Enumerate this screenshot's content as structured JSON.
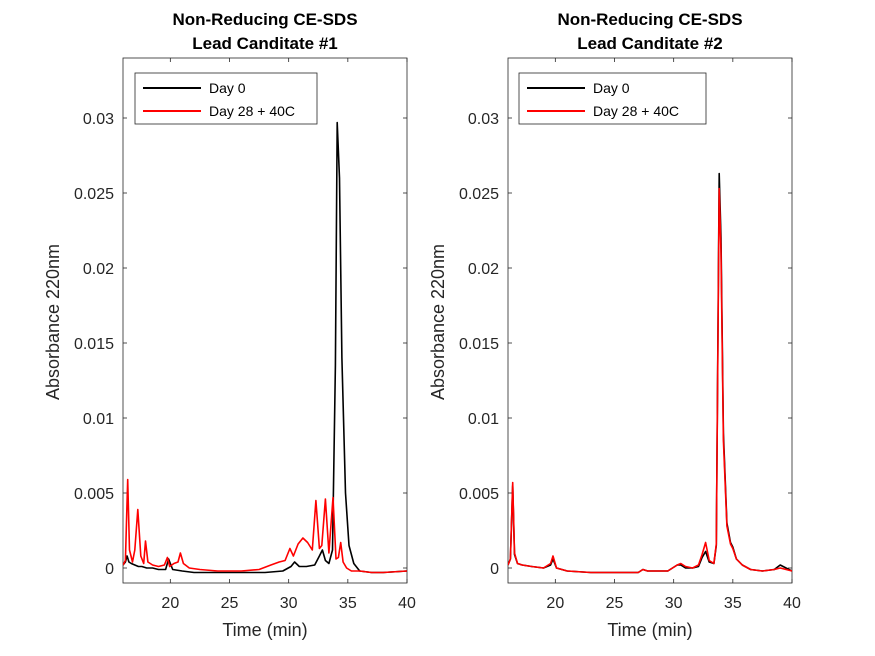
{
  "chart_data": [
    {
      "type": "line",
      "title": "Non-Reducing CE-SDS",
      "subtitle": "Lead Canditate #1",
      "xlabel": "Time (min)",
      "ylabel": "Absorbance 220nm",
      "xlim": [
        16,
        40
      ],
      "ylim": [
        -0.001,
        0.034
      ],
      "xticks": [
        "20",
        "25",
        "30",
        "35",
        "40"
      ],
      "yticks": [
        "0",
        "0.005",
        "0.01",
        "0.015",
        "0.02",
        "0.025",
        "0.03"
      ],
      "legend_placement": "top-left",
      "grid": false,
      "series": [
        {
          "name": "Day 0",
          "color": "#000000",
          "x": [
            16.0,
            16.2,
            16.35,
            16.5,
            16.7,
            17.0,
            17.3,
            17.6,
            18.0,
            18.5,
            19.0,
            19.6,
            19.85,
            20.2,
            21.0,
            22.0,
            24.0,
            26.0,
            28.0,
            29.5,
            30.2,
            30.5,
            30.9,
            31.5,
            32.2,
            32.6,
            32.85,
            33.1,
            33.4,
            33.7,
            33.95,
            34.1,
            34.3,
            34.5,
            34.8,
            35.1,
            35.5,
            36.0,
            37.0,
            38.0,
            40.0
          ],
          "y": [
            0.0002,
            0.0004,
            0.0008,
            0.0004,
            0.0003,
            0.0002,
            0.0001,
            0.0001,
            0.0,
            0.0,
            -0.0001,
            -0.0001,
            0.0006,
            -0.0001,
            -0.0002,
            -0.0003,
            -0.0003,
            -0.0003,
            -0.0003,
            -0.0002,
            0.0001,
            0.0004,
            0.0001,
            0.0001,
            0.0002,
            0.0008,
            0.0012,
            0.0005,
            0.0003,
            0.0012,
            0.0135,
            0.0297,
            0.026,
            0.014,
            0.005,
            0.0015,
            0.0003,
            -0.0002,
            -0.0003,
            -0.0003,
            -0.0002
          ]
        },
        {
          "name": "Day 28 + 40C",
          "color": "#ff0000",
          "x": [
            16.0,
            16.2,
            16.4,
            16.55,
            16.8,
            17.0,
            17.25,
            17.5,
            17.75,
            17.9,
            18.1,
            18.5,
            19.0,
            19.5,
            19.75,
            19.95,
            20.3,
            20.65,
            20.85,
            21.1,
            21.6,
            22.5,
            24.0,
            26.0,
            27.5,
            28.5,
            29.2,
            29.7,
            30.1,
            30.4,
            30.8,
            31.2,
            31.6,
            32.0,
            32.3,
            32.6,
            32.8,
            33.1,
            33.4,
            33.75,
            34.0,
            34.2,
            34.4,
            34.6,
            34.9,
            35.3,
            36.0,
            37.0,
            38.0,
            40.0
          ],
          "y": [
            0.0002,
            0.0005,
            0.0059,
            0.0012,
            0.0004,
            0.0012,
            0.0039,
            0.0008,
            0.0003,
            0.0018,
            0.0004,
            0.0002,
            0.0001,
            0.0002,
            0.0007,
            0.0001,
            0.0003,
            0.0004,
            0.001,
            0.0003,
            0.0,
            -0.0001,
            -0.0002,
            -0.0002,
            -0.0001,
            0.0002,
            0.0004,
            0.0005,
            0.0013,
            0.0008,
            0.0016,
            0.002,
            0.0017,
            0.0012,
            0.0045,
            0.0013,
            0.0015,
            0.0046,
            0.001,
            0.0047,
            0.0006,
            0.0007,
            0.0017,
            0.0004,
            0.0,
            -0.0002,
            -0.0002,
            -0.0003,
            -0.0003,
            -0.0002
          ]
        }
      ]
    },
    {
      "type": "line",
      "title": "Non-Reducing CE-SDS",
      "subtitle": "Lead Canditate #2",
      "xlabel": "Time (min)",
      "ylabel": "Absorbance 220nm",
      "xlim": [
        16,
        40
      ],
      "ylim": [
        -0.001,
        0.034
      ],
      "xticks": [
        "20",
        "25",
        "30",
        "35",
        "40"
      ],
      "yticks": [
        "0",
        "0.005",
        "0.01",
        "0.015",
        "0.02",
        "0.025",
        "0.03"
      ],
      "legend_placement": "top-left",
      "grid": false,
      "series": [
        {
          "name": "Day 0",
          "color": "#000000",
          "x": [
            16.0,
            16.2,
            16.4,
            16.55,
            16.8,
            17.2,
            18.0,
            19.0,
            19.6,
            19.8,
            20.1,
            21.0,
            23.0,
            25.0,
            27.0,
            27.4,
            27.8,
            29.5,
            30.3,
            30.6,
            31.0,
            31.6,
            32.1,
            32.4,
            32.7,
            33.0,
            33.4,
            33.6,
            33.85,
            34.0,
            34.2,
            34.5,
            34.8,
            35.0,
            35.3,
            35.8,
            36.5,
            37.5,
            38.5,
            39.0,
            40.0
          ],
          "y": [
            0.0002,
            0.0006,
            0.0055,
            0.0009,
            0.0003,
            0.0002,
            0.0001,
            0.0,
            0.0002,
            0.0006,
            0.0,
            -0.0002,
            -0.0003,
            -0.0003,
            -0.0003,
            -0.0001,
            -0.0002,
            -0.0002,
            0.0002,
            0.0002,
            0.0,
            0.0,
            0.0001,
            0.0007,
            0.0011,
            0.0004,
            0.0003,
            0.0015,
            0.0263,
            0.022,
            0.009,
            0.003,
            0.0017,
            0.0014,
            0.0006,
            0.0002,
            -0.0001,
            -0.0002,
            -0.0001,
            0.0002,
            -0.0002
          ]
        },
        {
          "name": "Day 28 + 40C",
          "color": "#ff0000",
          "x": [
            16.0,
            16.2,
            16.4,
            16.55,
            16.8,
            17.2,
            18.0,
            19.0,
            19.6,
            19.8,
            20.1,
            21.0,
            23.0,
            25.0,
            27.0,
            27.4,
            27.8,
            29.5,
            30.3,
            30.6,
            31.0,
            31.6,
            32.1,
            32.4,
            32.7,
            33.0,
            33.4,
            33.6,
            33.85,
            34.0,
            34.2,
            34.5,
            34.8,
            35.0,
            35.3,
            35.8,
            36.5,
            37.5,
            38.5,
            39.0,
            40.0
          ],
          "y": [
            0.0002,
            0.0006,
            0.0057,
            0.001,
            0.0003,
            0.0002,
            0.0001,
            0.0,
            0.0003,
            0.0008,
            0.0,
            -0.0002,
            -0.0003,
            -0.0003,
            -0.0003,
            -0.0001,
            -0.0002,
            -0.0002,
            0.0002,
            0.0003,
            0.0001,
            0.0,
            0.0002,
            0.0009,
            0.0017,
            0.0005,
            0.0003,
            0.0016,
            0.0253,
            0.021,
            0.0085,
            0.0028,
            0.0016,
            0.0013,
            0.0006,
            0.0002,
            -0.0001,
            -0.0002,
            -0.0001,
            0.0,
            -0.0002
          ]
        }
      ]
    }
  ]
}
